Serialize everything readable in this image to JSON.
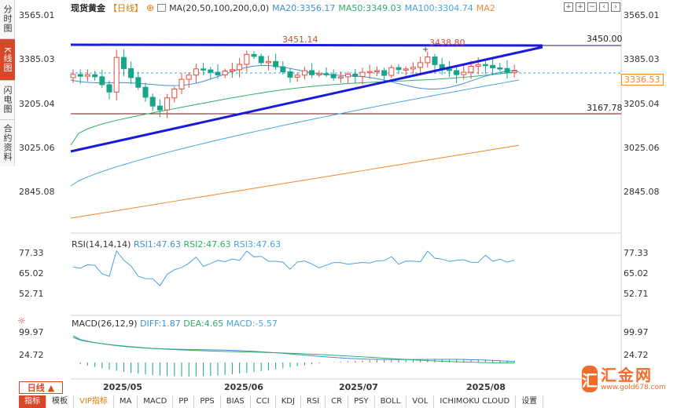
{
  "side_tabs": [
    "分时图",
    "K线图",
    "闪电图",
    "合约资料"
  ],
  "side_tab_active": 1,
  "header": {
    "symbol": "现货黄金",
    "period": "【日线】",
    "ma_params": "MA(20,50,100,200,0,0)",
    "ma20": "MA20:3356.17",
    "ma50": "MA50:3349.03",
    "ma100": "MA100:3304.74",
    "ma2": "MA2"
  },
  "price_axis": [
    "3565.01",
    "3385.03",
    "3205.04",
    "3025.06",
    "2845.08"
  ],
  "price_axis_left": [
    "3565.01",
    "3385.03",
    "3205.04",
    "3025.06",
    "2845.08"
  ],
  "annotations": {
    "high1": "3451.14",
    "high2": "3438.80",
    "resistance": "3450.00",
    "support": "3167.78",
    "last_price": "3336.53"
  },
  "rsi": {
    "title": "RSI(14,14,14)",
    "rsi1": "RSI1:47.63",
    "rsi2": "RSI2:47.63",
    "rsi3": "RSI3:47.63",
    "axis": [
      "77.33",
      "65.02",
      "52.71"
    ]
  },
  "macd": {
    "title": "MACD(26,12,9)",
    "diff": "DIFF:1.87",
    "dea": "DEA:4.65",
    "macd": "MACD:-5.57",
    "axis": [
      "99.97",
      "24.72"
    ]
  },
  "dates": [
    "2025/05",
    "2025/06",
    "2025/07",
    "2025/08"
  ],
  "period_selector": "日线",
  "bottom_tabs": [
    "指标",
    "模板",
    "VIP指标",
    "MA",
    "MACD",
    "PP",
    "PPS",
    "BIAS",
    "CCI",
    "KDJ",
    "RSI",
    "CR",
    "PSY",
    "BOLL",
    "VOL",
    "ICHIMOKU CLOUD",
    "设置"
  ],
  "bottom_tab_active": 0,
  "logo": {
    "mark": "汇",
    "name": "汇金网",
    "url": "www.gold678.com"
  },
  "colors": {
    "up": "#e84c3d",
    "down": "#17a589",
    "trendline": "#1a1adb",
    "ma20": "#3f8fd7",
    "ma50": "#2fae6a",
    "ma100": "#4aa3de",
    "ma200": "#f08a2c",
    "accent": "#d9472b"
  }
}
